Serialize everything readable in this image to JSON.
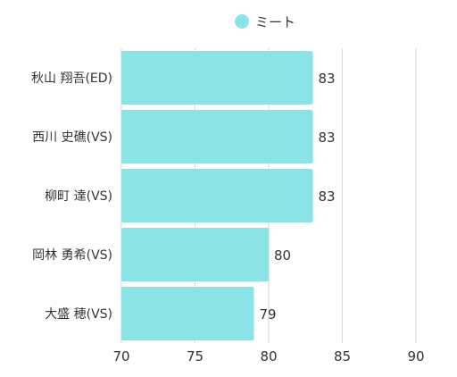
{
  "chart_data": {
    "type": "bar",
    "orientation": "horizontal",
    "categories": [
      "秋山 翔吾(ED)",
      "西川 史礁(VS)",
      "柳町 達(VS)",
      "岡林 勇希(VS)",
      "大盛 穂(VS)"
    ],
    "series": [
      {
        "name": "ミート",
        "values": [
          83,
          83,
          83,
          80,
          79
        ]
      }
    ],
    "xlim": [
      70,
      90
    ],
    "xticks": [
      70,
      75,
      80,
      85,
      90
    ],
    "grid": true,
    "legend": "top-center",
    "bar_color": "#8ce3e6",
    "data_labels": true
  }
}
